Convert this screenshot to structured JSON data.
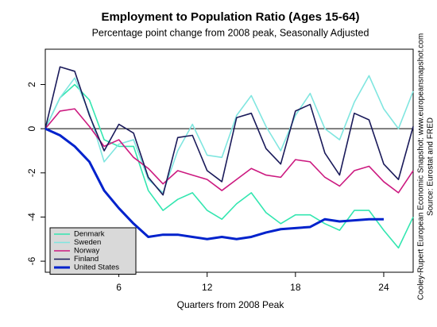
{
  "chart_data": {
    "type": "line",
    "title": "Employment to Population Ratio (Ages 15-64)",
    "subtitle": "Percentage point change from 2008 peak, Seasonally Adjusted",
    "x_label": "Quarters from 2008 Peak",
    "notes": [
      "Cooley-Rupert European Economic Snapshot: www.europeansnapshot.com",
      "Source: Eurostat and FRED"
    ],
    "x": [
      1,
      2,
      3,
      4,
      5,
      6,
      7,
      8,
      9,
      10,
      11,
      12,
      13,
      14,
      15,
      16,
      17,
      18,
      19,
      20,
      21,
      22,
      23,
      24,
      25,
      26
    ],
    "series": [
      {
        "name": "Denmark",
        "color": "#33e6b0",
        "values": [
          0,
          1.4,
          2.0,
          1.3,
          -0.5,
          -0.8,
          -0.8,
          -2.8,
          -3.7,
          -3.2,
          -2.9,
          -3.7,
          -4.1,
          -3.4,
          -2.9,
          -3.8,
          -4.3,
          -3.9,
          -3.9,
          -4.3,
          -4.6,
          -3.7,
          -3.7,
          -4.6,
          -5.4,
          -4.0
        ]
      },
      {
        "name": "Sweden",
        "color": "#80e6e0",
        "values": [
          0,
          1.4,
          2.3,
          0.7,
          -1.5,
          -0.7,
          -0.5,
          -2.3,
          -2.9,
          -1.0,
          0.2,
          -1.2,
          -1.3,
          0.6,
          1.5,
          0.1,
          -1.0,
          0.6,
          1.6,
          0.0,
          -0.5,
          1.2,
          2.4,
          0.9,
          0.0,
          1.7
        ]
      },
      {
        "name": "Norway",
        "color": "#cc1a80",
        "values": [
          0,
          0.8,
          0.9,
          0.1,
          -0.8,
          -0.5,
          -1.3,
          -1.8,
          -2.5,
          -1.9,
          -2.1,
          -2.3,
          -2.8,
          -2.3,
          -1.8,
          -2.1,
          -2.2,
          -1.4,
          -1.5,
          -2.2,
          -2.6,
          -1.9,
          -1.7,
          -2.4,
          -2.9,
          -1.9
        ]
      },
      {
        "name": "Finland",
        "color": "#1a1a5a",
        "values": [
          0,
          2.8,
          2.6,
          0.6,
          -1.0,
          0.2,
          -0.2,
          -2.2,
          -3.0,
          -0.4,
          -0.3,
          -1.9,
          -2.4,
          0.5,
          0.7,
          -0.9,
          -1.6,
          0.8,
          1.1,
          -1.1,
          -2.1,
          0.7,
          0.4,
          -1.6,
          -2.3,
          0.1
        ]
      },
      {
        "name": "United States",
        "color": "#0022cc",
        "values": [
          0,
          -0.3,
          -0.8,
          -1.5,
          -2.8,
          -3.6,
          -4.3,
          -4.9,
          -4.8,
          -4.8,
          -4.9,
          -5.0,
          -4.9,
          -5.0,
          -4.9,
          -4.7,
          -4.55,
          -4.5,
          -4.45,
          -4.1,
          -4.2,
          -4.15,
          -4.1,
          -4.1,
          null,
          null
        ]
      }
    ],
    "reference_line": 0,
    "xlim": [
      1,
      26
    ],
    "ylim": [
      -6.5,
      3.6
    ],
    "xticks": [
      6,
      12,
      18,
      24
    ],
    "yticks": [
      -6,
      -4,
      -2,
      0,
      2
    ],
    "legend": "bottom-left"
  }
}
